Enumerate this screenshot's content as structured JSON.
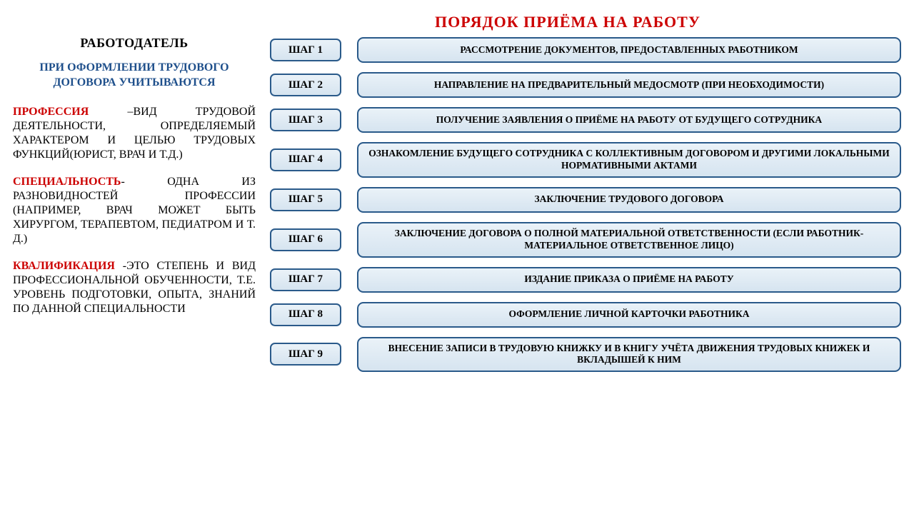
{
  "title": "ПОРЯДОК ПРИЁМА НА РАБОТУ",
  "left": {
    "employer": "РАБОТОДАТЕЛЬ",
    "subheading": "ПРИ ОФОРМЛЕНИИ ТРУДОВОГО ДОГОВОРА УЧИТЫВАЮТСЯ",
    "def1_term": "ПРОФЕССИЯ",
    "def1_rest": " –ВИД ТРУДОВОЙ ДЕЯТЕЛЬНОСТИ, ОПРЕДЕЛЯЕМЫЙ ХАРАКТЕРОМ И ЦЕЛЬЮ ТРУДОВЫХ ФУНКЦИЙ(ЮРИСТ, ВРАЧ И Т.Д.)",
    "def2_term": "СПЕЦИАЛЬНОСТЬ",
    "def2_rest": "- ОДНА ИЗ РАЗНОВИДНОСТЕЙ ПРОФЕССИИ (НАПРИМЕР, ВРАЧ МОЖЕТ БЫТЬ ХИРУРГОМ, ТЕРАПЕВТОМ, ПЕДИАТРОМ И Т. Д.)",
    "def3_term": "КВАЛИФИКАЦИЯ",
    "def3_rest": " -ЭТО СТЕПЕНЬ И ВИД ПРОФЕССИОНАЛЬНОЙ ОБУЧЕННОСТИ, Т.Е. УРОВЕНЬ ПОДГОТОВКИ, ОПЫТА, ЗНАНИЙ ПО ДАННОЙ СПЕЦИАЛЬНОСТИ"
  },
  "steps": [
    {
      "label": "ШАГ 1",
      "text": "РАССМОТРЕНИЕ ДОКУМЕНТОВ,  ПРЕДОСТАВЛЕННЫХ РАБОТНИКОМ"
    },
    {
      "label": "ШАГ 2",
      "text": "НАПРАВЛЕНИЕ НА ПРЕДВАРИТЕЛЬНЫЙ МЕДОСМОТР (ПРИ НЕОБХОДИМОСТИ)"
    },
    {
      "label": "ШАГ 3",
      "text": "ПОЛУЧЕНИЕ ЗАЯВЛЕНИЯ О ПРИЁМЕ НА РАБОТУ ОТ БУДУЩЕГО СОТРУДНИКА"
    },
    {
      "label": "ШАГ 4",
      "text": "ОЗНАКОМЛЕНИЕ БУДУЩЕГО СОТРУДНИКА С КОЛЛЕКТИВНЫМ ДОГОВОРОМ И ДРУГИМИ ЛОКАЛЬНЫМИ НОРМАТИВНЫМИ  АКТАМИ"
    },
    {
      "label": "ШАГ 5",
      "text": "ЗАКЛЮЧЕНИЕ ТРУДОВОГО ДОГОВОРА"
    },
    {
      "label": "ШАГ 6",
      "text": "ЗАКЛЮЧЕНИЕ   ДОГОВОРА О ПОЛНОЙ МАТЕРИАЛЬНОЙ ОТВЕТСТВЕННОСТИ (ЕСЛИ РАБОТНИК-МАТЕРИАЛЬНОЕ ОТВЕТСТВЕННОЕ ЛИЦО)"
    },
    {
      "label": "ШАГ 7",
      "text": "ИЗДАНИЕ ПРИКАЗА О ПРИЁМЕ НА РАБОТУ"
    },
    {
      "label": "ШАГ 8",
      "text": "ОФОРМЛЕНИЕ ЛИЧНОЙ КАРТОЧКИ РАБОТНИКА"
    },
    {
      "label": "ШАГ 9",
      "text": "ВНЕСЕНИЕ ЗАПИСИ В ТРУДОВУЮ КНИЖКУ И В КНИГУ УЧЁТА ДВИЖЕНИЯ ТРУДОВЫХ КНИЖЕК И ВКЛАДЫШЕЙ К НИМ"
    }
  ],
  "style": {
    "title_color": "#cc0000",
    "sub_color": "#1e4f8b",
    "term_color": "#cc0000",
    "box_border": "#2a5a8a",
    "box_bg_top": "#eaf2f8",
    "box_bg_bottom": "#d6e4f0",
    "page_bg": "#ffffff"
  }
}
